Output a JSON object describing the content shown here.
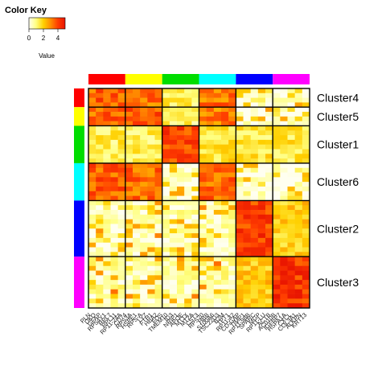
{
  "chart_data": {
    "type": "heatmap",
    "color_key": {
      "title": "Color Key",
      "xlabel": "Value",
      "ticks": [
        "0",
        "2",
        "4"
      ],
      "range": [
        0,
        5
      ],
      "colors": [
        "#FFFFF0",
        "#FFFF80",
        "#FFD000",
        "#FF8C00",
        "#FF3C00",
        "#E81400"
      ]
    },
    "clusters": [
      {
        "name": "Cluster4",
        "color": "#FF0000",
        "rows": 4,
        "cols": 5
      },
      {
        "name": "Cluster5",
        "color": "#FFFF00",
        "rows": 4,
        "cols": 5
      },
      {
        "name": "Cluster1",
        "color": "#00DD00",
        "rows": 8,
        "cols": 5
      },
      {
        "name": "Cluster6",
        "color": "#00FFFF",
        "rows": 8,
        "cols": 5
      },
      {
        "name": "Cluster2",
        "color": "#0000FF",
        "rows": 12,
        "cols": 5
      },
      {
        "name": "Cluster3",
        "color": "#FF00FF",
        "rows": 11,
        "cols": 5
      }
    ],
    "row_order": [
      "Cluster4",
      "Cluster5",
      "Cluster1",
      "Cluster6",
      "Cluster2",
      "Cluster3"
    ],
    "col_order": [
      "Cluster4",
      "Cluster5",
      "Cluster1",
      "Cluster6",
      "Cluster2",
      "Cluster3"
    ],
    "gene_labels": [
      "PLN",
      "DKO",
      "GFAP",
      "RPS4Y1",
      "RPL7",
      "RPL11",
      "RP11-24A",
      "CD74",
      "RPS3A",
      "HSPE1",
      "RPS-A",
      "LYZ",
      "FTH1",
      "HBA2",
      "FOS",
      "TMEM10",
      "ID3",
      "NRIP1",
      "APOE",
      "MT1X",
      "MT2A",
      "CST3",
      "RPS20",
      "HBB",
      "S100A6",
      "TSC22D3",
      "B2M",
      "TPT1",
      "RP11-42",
      "CD-GAP",
      "TIMP1",
      "RP11-98B",
      "SPARC",
      "MGP",
      "RP11-LU",
      "ACTB",
      "AC010B",
      "IGFBP7",
      "HSPA1A",
      "CXCL",
      "COL3A1",
      "ALKPN",
      "KRT13"
    ],
    "block_means": [
      [
        3.6,
        3.3,
        1.3,
        3.3,
        0.2,
        0.2
      ],
      [
        3.5,
        3.6,
        1.2,
        3.2,
        0.2,
        0.2
      ],
      [
        1.3,
        1.3,
        4.0,
        1.6,
        1.5,
        1.5
      ],
      [
        3.6,
        3.4,
        0.3,
        3.5,
        0.2,
        0.2
      ],
      [
        0.4,
        0.4,
        0.5,
        0.5,
        4.1,
        2.0
      ],
      [
        0.7,
        0.6,
        0.6,
        0.7,
        2.1,
        4.2
      ]
    ],
    "xlabel": "",
    "ylabel": ""
  }
}
